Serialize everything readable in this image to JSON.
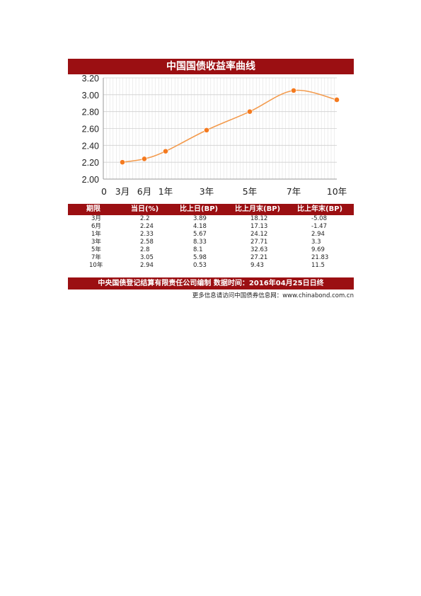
{
  "chart_data": {
    "type": "line",
    "title": "中国国债收益率曲线",
    "x_tick_labels": [
      "0",
      "3月",
      "6月",
      "1年",
      "3年",
      "5年",
      "7年",
      "10年"
    ],
    "y_tick_labels": [
      "2.00",
      "2.20",
      "2.40",
      "2.60",
      "2.80",
      "3.00",
      "3.20"
    ],
    "ylim": [
      2.0,
      3.2
    ],
    "grid": true,
    "series": [
      {
        "points": [
          {
            "x": "3月",
            "y": 2.2
          },
          {
            "x": "6月",
            "y": 2.24
          },
          {
            "x": "1年",
            "y": 2.33
          },
          {
            "x": "3年",
            "y": 2.58
          },
          {
            "x": "5年",
            "y": 2.8
          },
          {
            "x": "7年",
            "y": 3.05
          },
          {
            "x": "10年",
            "y": 2.94
          }
        ]
      }
    ],
    "line_color": "#f39a4c",
    "marker_color": "#f47a1f"
  },
  "table": {
    "headers": [
      "期限",
      "当日(%)",
      "比上日(BP)",
      "比上月末(BP)",
      "比上年末(BP)"
    ],
    "rows": [
      [
        "3月",
        "2.2",
        "3.89",
        "18.12",
        "-5.08"
      ],
      [
        "6月",
        "2.24",
        "4.18",
        "17.13",
        "-1.47"
      ],
      [
        "1年",
        "2.33",
        "5.67",
        "24.12",
        "2.94"
      ],
      [
        "3年",
        "2.58",
        "8.33",
        "27.71",
        "3.3"
      ],
      [
        "5年",
        "2.8",
        "8.1",
        "32.63",
        "9.69"
      ],
      [
        "7年",
        "3.05",
        "5.98",
        "27.21",
        "21.83"
      ],
      [
        "10年",
        "2.94",
        "0.53",
        "9.43",
        "11.5"
      ]
    ]
  },
  "footer": "中央国债登记结算有限责任公司编制 数据时间：2016年04月25日日终",
  "source": "更多信息请访问中国债券信息网：www.chinabond.com.cn",
  "colors": {
    "bar_red": "#9b0f12",
    "grid": "#e2e2e2"
  }
}
